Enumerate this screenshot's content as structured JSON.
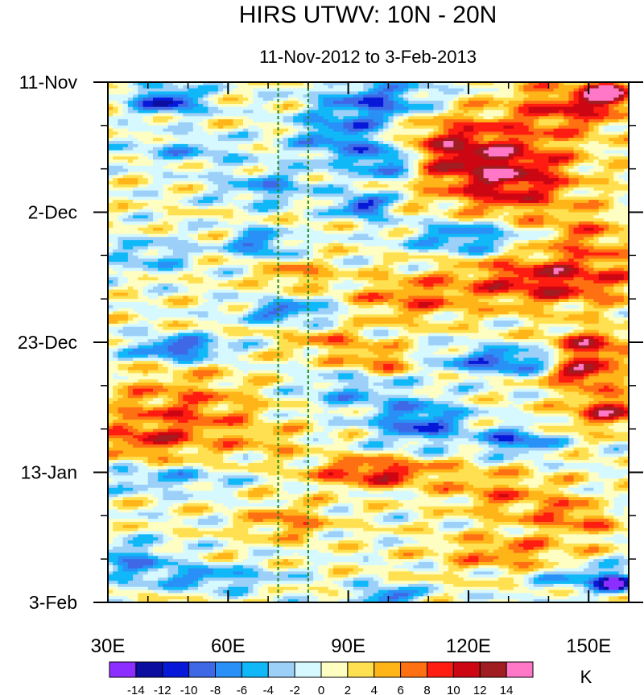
{
  "chart_data": {
    "type": "heatmap",
    "title": "HIRS UTWV: 10N - 20N",
    "subtitle": "11-Nov-2012 to 3-Feb-2013",
    "x_axis": {
      "range": [
        30,
        160
      ],
      "ticks": [
        {
          "value": 30,
          "label": "30E"
        },
        {
          "value": 60,
          "label": "60E"
        },
        {
          "value": 90,
          "label": "90E"
        },
        {
          "value": 120,
          "label": "120E"
        },
        {
          "value": 150,
          "label": "150E"
        }
      ],
      "minor_step": 10
    },
    "y_axis": {
      "range_days": [
        0,
        84
      ],
      "direction": "top-to-bottom",
      "ticks": [
        {
          "day": 0,
          "label": "11-Nov"
        },
        {
          "day": 21,
          "label": "2-Dec"
        },
        {
          "day": 42,
          "label": "23-Dec"
        },
        {
          "day": 63,
          "label": "13-Jan"
        },
        {
          "day": 84,
          "label": "3-Feb"
        }
      ],
      "minor_step_days": 7
    },
    "reference_lines_lon": [
      72.5,
      80
    ],
    "colorbar": {
      "unit": "K",
      "levels": [
        -14,
        -12,
        -10,
        -8,
        -6,
        -4,
        -2,
        0,
        2,
        4,
        6,
        8,
        10,
        12,
        14
      ],
      "labels": [
        "-14",
        "-12",
        "-10",
        "-8",
        "-6",
        "-4",
        "-2",
        "0",
        "2",
        "4",
        "6",
        "8",
        "10",
        "12",
        "14"
      ],
      "colors": [
        "#8c2eff",
        "#0c0ea0",
        "#0818d8",
        "#3e68e6",
        "#2890f6",
        "#10b8f8",
        "#9cd0f8",
        "#d6f8ff",
        "#fefec2",
        "#fee050",
        "#ffb418",
        "#ff7012",
        "#ff1c10",
        "#cc0612",
        "#a01e22",
        "#ff78c8"
      ]
    },
    "features": [
      {
        "lon": 45,
        "day": 3,
        "amp": -12,
        "slon": 6,
        "sday": 1.6
      },
      {
        "lon": 98,
        "day": 3,
        "amp": -9,
        "slon": 10,
        "sday": 2.5
      },
      {
        "lon": 88,
        "day": 9,
        "amp": -8,
        "slon": 8,
        "sday": 3
      },
      {
        "lon": 100,
        "day": 13,
        "amp": -10,
        "slon": 5,
        "sday": 2
      },
      {
        "lon": 94,
        "day": 20,
        "amp": -13,
        "slon": 4,
        "sday": 1.3
      },
      {
        "lon": 70,
        "day": 17,
        "amp": -6,
        "slon": 9,
        "sday": 2
      },
      {
        "lon": 50,
        "day": 11,
        "amp": -5,
        "slon": 10,
        "sday": 1.5
      },
      {
        "lon": 145,
        "day": 4,
        "amp": 8,
        "slon": 10,
        "sday": 3
      },
      {
        "lon": 155,
        "day": 2,
        "amp": 14,
        "slon": 4,
        "sday": 1.5
      },
      {
        "lon": 130,
        "day": 15,
        "amp": 11,
        "slon": 12,
        "sday": 5
      },
      {
        "lon": 115,
        "day": 10,
        "amp": 7,
        "slon": 10,
        "sday": 4
      },
      {
        "lon": 120,
        "day": 25,
        "amp": -9,
        "slon": 10,
        "sday": 2
      },
      {
        "lon": 150,
        "day": 25,
        "amp": 5,
        "slon": 8,
        "sday": 3
      },
      {
        "lon": 68,
        "day": 26,
        "amp": -9,
        "slon": 5,
        "sday": 1.5
      },
      {
        "lon": 40,
        "day": 28,
        "amp": -5,
        "slon": 8,
        "sday": 2
      },
      {
        "lon": 77,
        "day": 31,
        "amp": 6,
        "slon": 6,
        "sday": 1.3
      },
      {
        "lon": 140,
        "day": 32,
        "amp": 10,
        "slon": 16,
        "sday": 3
      },
      {
        "lon": 105,
        "day": 35,
        "amp": 6,
        "slon": 10,
        "sday": 2.5
      },
      {
        "lon": 75,
        "day": 37,
        "amp": -9,
        "slon": 8,
        "sday": 1.2
      },
      {
        "lon": 48,
        "day": 43,
        "amp": -12,
        "slon": 8,
        "sday": 1.3
      },
      {
        "lon": 85,
        "day": 42,
        "amp": 5,
        "slon": 8,
        "sday": 1.5
      },
      {
        "lon": 130,
        "day": 45,
        "amp": -10,
        "slon": 12,
        "sday": 1.5
      },
      {
        "lon": 150,
        "day": 43,
        "amp": 11,
        "slon": 7,
        "sday": 2
      },
      {
        "lon": 148,
        "day": 47,
        "amp": 12,
        "slon": 6,
        "sday": 1.5
      },
      {
        "lon": 48,
        "day": 54,
        "amp": 7,
        "slon": 14,
        "sday": 5
      },
      {
        "lon": 98,
        "day": 45,
        "amp": 7,
        "slon": 6,
        "sday": 1.3
      },
      {
        "lon": 108,
        "day": 55,
        "amp": -10,
        "slon": 8,
        "sday": 2.5
      },
      {
        "lon": 132,
        "day": 58,
        "amp": -10,
        "slon": 6,
        "sday": 1.5
      },
      {
        "lon": 155,
        "day": 53,
        "amp": 10,
        "slon": 7,
        "sday": 2
      },
      {
        "lon": 97,
        "day": 63,
        "amp": 10,
        "slon": 11,
        "sday": 1.6
      },
      {
        "lon": 72,
        "day": 58,
        "amp": 3,
        "slon": 5,
        "sday": 1.5
      },
      {
        "lon": 38,
        "day": 58,
        "amp": 5,
        "slon": 6,
        "sday": 1.5
      },
      {
        "lon": 45,
        "day": 64,
        "amp": -6,
        "slon": 12,
        "sday": 1.5
      },
      {
        "lon": 75,
        "day": 71,
        "amp": 6,
        "slon": 7,
        "sday": 2
      },
      {
        "lon": 150,
        "day": 70,
        "amp": 7,
        "slon": 12,
        "sday": 2
      },
      {
        "lon": 128,
        "day": 66,
        "amp": 5,
        "slon": 10,
        "sday": 2.5
      },
      {
        "lon": 157,
        "day": 69,
        "amp": -8,
        "slon": 3,
        "sday": 1.5
      },
      {
        "lon": 35,
        "day": 77,
        "amp": -7,
        "slon": 8,
        "sday": 2
      },
      {
        "lon": 55,
        "day": 80,
        "amp": -7,
        "slon": 12,
        "sday": 1.3
      },
      {
        "lon": 100,
        "day": 83,
        "amp": -11,
        "slon": 5,
        "sday": 1
      },
      {
        "lon": 150,
        "day": 80,
        "amp": -7,
        "slon": 9,
        "sday": 1.5
      },
      {
        "lon": 157,
        "day": 81,
        "amp": -14,
        "slon": 3,
        "sday": 1
      },
      {
        "lon": 130,
        "day": 76,
        "amp": 6,
        "slon": 12,
        "sday": 2
      },
      {
        "lon": 90,
        "day": 50,
        "amp": -5,
        "slon": 10,
        "sday": 2
      }
    ]
  }
}
